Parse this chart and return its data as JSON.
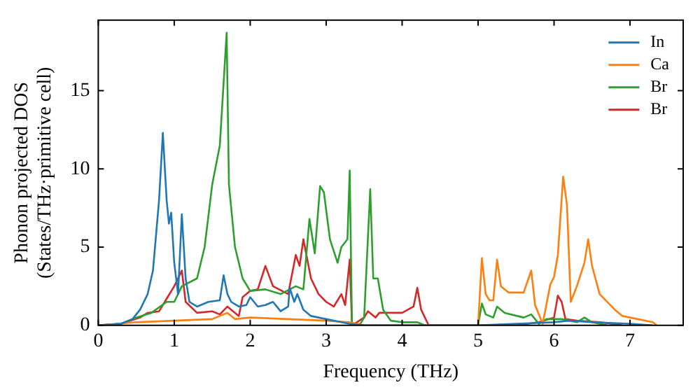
{
  "chart_data": {
    "type": "line",
    "xlabel": "Frequency (THz)",
    "ylabel": "Phonon projected DOS\n(States/THz·primitive cell)",
    "xlim": [
      0,
      7.7
    ],
    "ylim": [
      0,
      19.5
    ],
    "xticks": [
      0,
      1,
      2,
      3,
      4,
      5,
      6,
      7
    ],
    "yticks": [
      0,
      5,
      10,
      15
    ],
    "grid": false,
    "legend": "top right",
    "marker": "none",
    "line_style": "solid",
    "series": [
      {
        "name": "In",
        "color": "#1f77b4",
        "x": [
          0,
          0.3,
          0.45,
          0.55,
          0.65,
          0.72,
          0.8,
          0.85,
          0.9,
          0.93,
          0.96,
          1.0,
          1.05,
          1.1,
          1.15,
          1.2,
          1.3,
          1.45,
          1.6,
          1.65,
          1.7,
          1.75,
          1.85,
          1.95,
          2.0,
          2.1,
          2.2,
          2.3,
          2.4,
          2.5,
          2.52,
          2.58,
          2.62,
          2.7,
          2.8,
          2.9,
          3.0,
          3.1,
          3.3,
          3.5,
          5.0,
          5.5,
          6.0,
          6.2,
          6.5,
          7.0,
          7.3
        ],
        "values": [
          0,
          0.1,
          0.4,
          1,
          2,
          3.5,
          8,
          12.3,
          8,
          6.5,
          7.2,
          4,
          2,
          7.1,
          3,
          1.5,
          1.2,
          1.5,
          1.6,
          3.2,
          2,
          1.5,
          1.2,
          1.3,
          1.8,
          1.2,
          1.3,
          1.5,
          0.9,
          1.2,
          2.4,
          1.5,
          2,
          1,
          0.6,
          0.5,
          0.4,
          0.3,
          0.1,
          0,
          0,
          0.1,
          0.2,
          0.3,
          0.2,
          0.1,
          0
        ]
      },
      {
        "name": "Ca",
        "color": "#ff7f0e",
        "x": [
          0,
          0.5,
          1.0,
          1.5,
          1.7,
          1.8,
          2.0,
          2.5,
          3.0,
          3.3,
          3.5,
          4.0,
          4.8,
          5.0,
          5.05,
          5.1,
          5.15,
          5.2,
          5.25,
          5.3,
          5.4,
          5.6,
          5.7,
          5.75,
          5.85,
          5.95,
          6.0,
          6.05,
          6.12,
          6.17,
          6.22,
          6.3,
          6.4,
          6.45,
          6.5,
          6.6,
          6.8,
          6.9,
          7.1,
          7.3,
          7.35
        ],
        "values": [
          0,
          0.2,
          0.3,
          0.4,
          0.8,
          0.4,
          0.5,
          0.4,
          0.3,
          0.2,
          0,
          0,
          0,
          0,
          4.3,
          2,
          1.6,
          1.6,
          4.2,
          2.5,
          2.1,
          2.1,
          3.5,
          1.3,
          0.1,
          2.6,
          3.1,
          4.5,
          9.5,
          7.7,
          1.5,
          2.5,
          4,
          5.5,
          3.8,
          2,
          1,
          0.6,
          0.4,
          0.2,
          0
        ]
      },
      {
        "name": "Br",
        "color": "#2ca02c",
        "x": [
          0,
          0.3,
          0.5,
          0.7,
          0.9,
          1.0,
          1.1,
          1.3,
          1.4,
          1.5,
          1.6,
          1.69,
          1.72,
          1.8,
          1.9,
          2.0,
          2.2,
          2.4,
          2.6,
          2.7,
          2.78,
          2.85,
          2.92,
          2.97,
          3.05,
          3.15,
          3.2,
          3.28,
          3.31,
          3.34,
          3.45,
          3.5,
          3.58,
          3.62,
          3.68,
          3.75,
          3.85,
          4.0,
          4.2,
          4.3,
          5.0,
          5.05,
          5.1,
          5.2,
          5.25,
          5.35,
          5.6,
          5.7,
          5.8,
          5.9,
          6.1,
          6.3,
          6.4,
          6.5,
          6.7
        ],
        "values": [
          0,
          0.1,
          0.5,
          0.8,
          1.5,
          1.5,
          2.5,
          3,
          5,
          9,
          11.5,
          18.7,
          9,
          5,
          3,
          2.2,
          2.3,
          2,
          2.5,
          2.3,
          6.8,
          4.6,
          8.9,
          8.5,
          5.5,
          4,
          5,
          5.5,
          9.9,
          0,
          0.1,
          0.5,
          8.7,
          3,
          3,
          1,
          0.3,
          0.2,
          0.2,
          0,
          0,
          1.4,
          0.7,
          0.5,
          1.2,
          0.8,
          0.5,
          0.7,
          0.1,
          0.4,
          0.4,
          0.2,
          0.5,
          0.2,
          0
        ]
      },
      {
        "name": "Br",
        "color": "#d62728",
        "x": [
          0,
          0.3,
          0.55,
          0.65,
          0.8,
          0.9,
          1.0,
          1.1,
          1.15,
          1.3,
          1.5,
          1.6,
          1.7,
          1.85,
          1.9,
          2.0,
          2.1,
          2.2,
          2.3,
          2.5,
          2.6,
          2.65,
          2.7,
          2.8,
          2.9,
          3.0,
          3.1,
          3.2,
          3.25,
          3.31,
          3.34,
          3.5,
          3.55,
          3.65,
          3.7,
          4.0,
          4.15,
          4.2,
          4.25,
          4.35,
          5.5,
          5.8,
          6.0,
          6.05,
          6.1,
          6.15,
          6.3,
          6.6,
          6.9
        ],
        "values": [
          0,
          0.1,
          0.5,
          0.8,
          0.9,
          1.7,
          2.5,
          3.5,
          1.5,
          0.8,
          0.9,
          0.7,
          1.2,
          0.6,
          1.8,
          2.2,
          2.3,
          3.8,
          2.5,
          2,
          4.5,
          3.8,
          5.5,
          3,
          2,
          1.5,
          1.2,
          2,
          1.3,
          4.2,
          0,
          0.5,
          0.9,
          0.5,
          0.8,
          0.8,
          1.2,
          2.4,
          1,
          0,
          0,
          0.2,
          0.5,
          1.9,
          1.5,
          0.4,
          0.3,
          0.2,
          0
        ]
      }
    ]
  }
}
